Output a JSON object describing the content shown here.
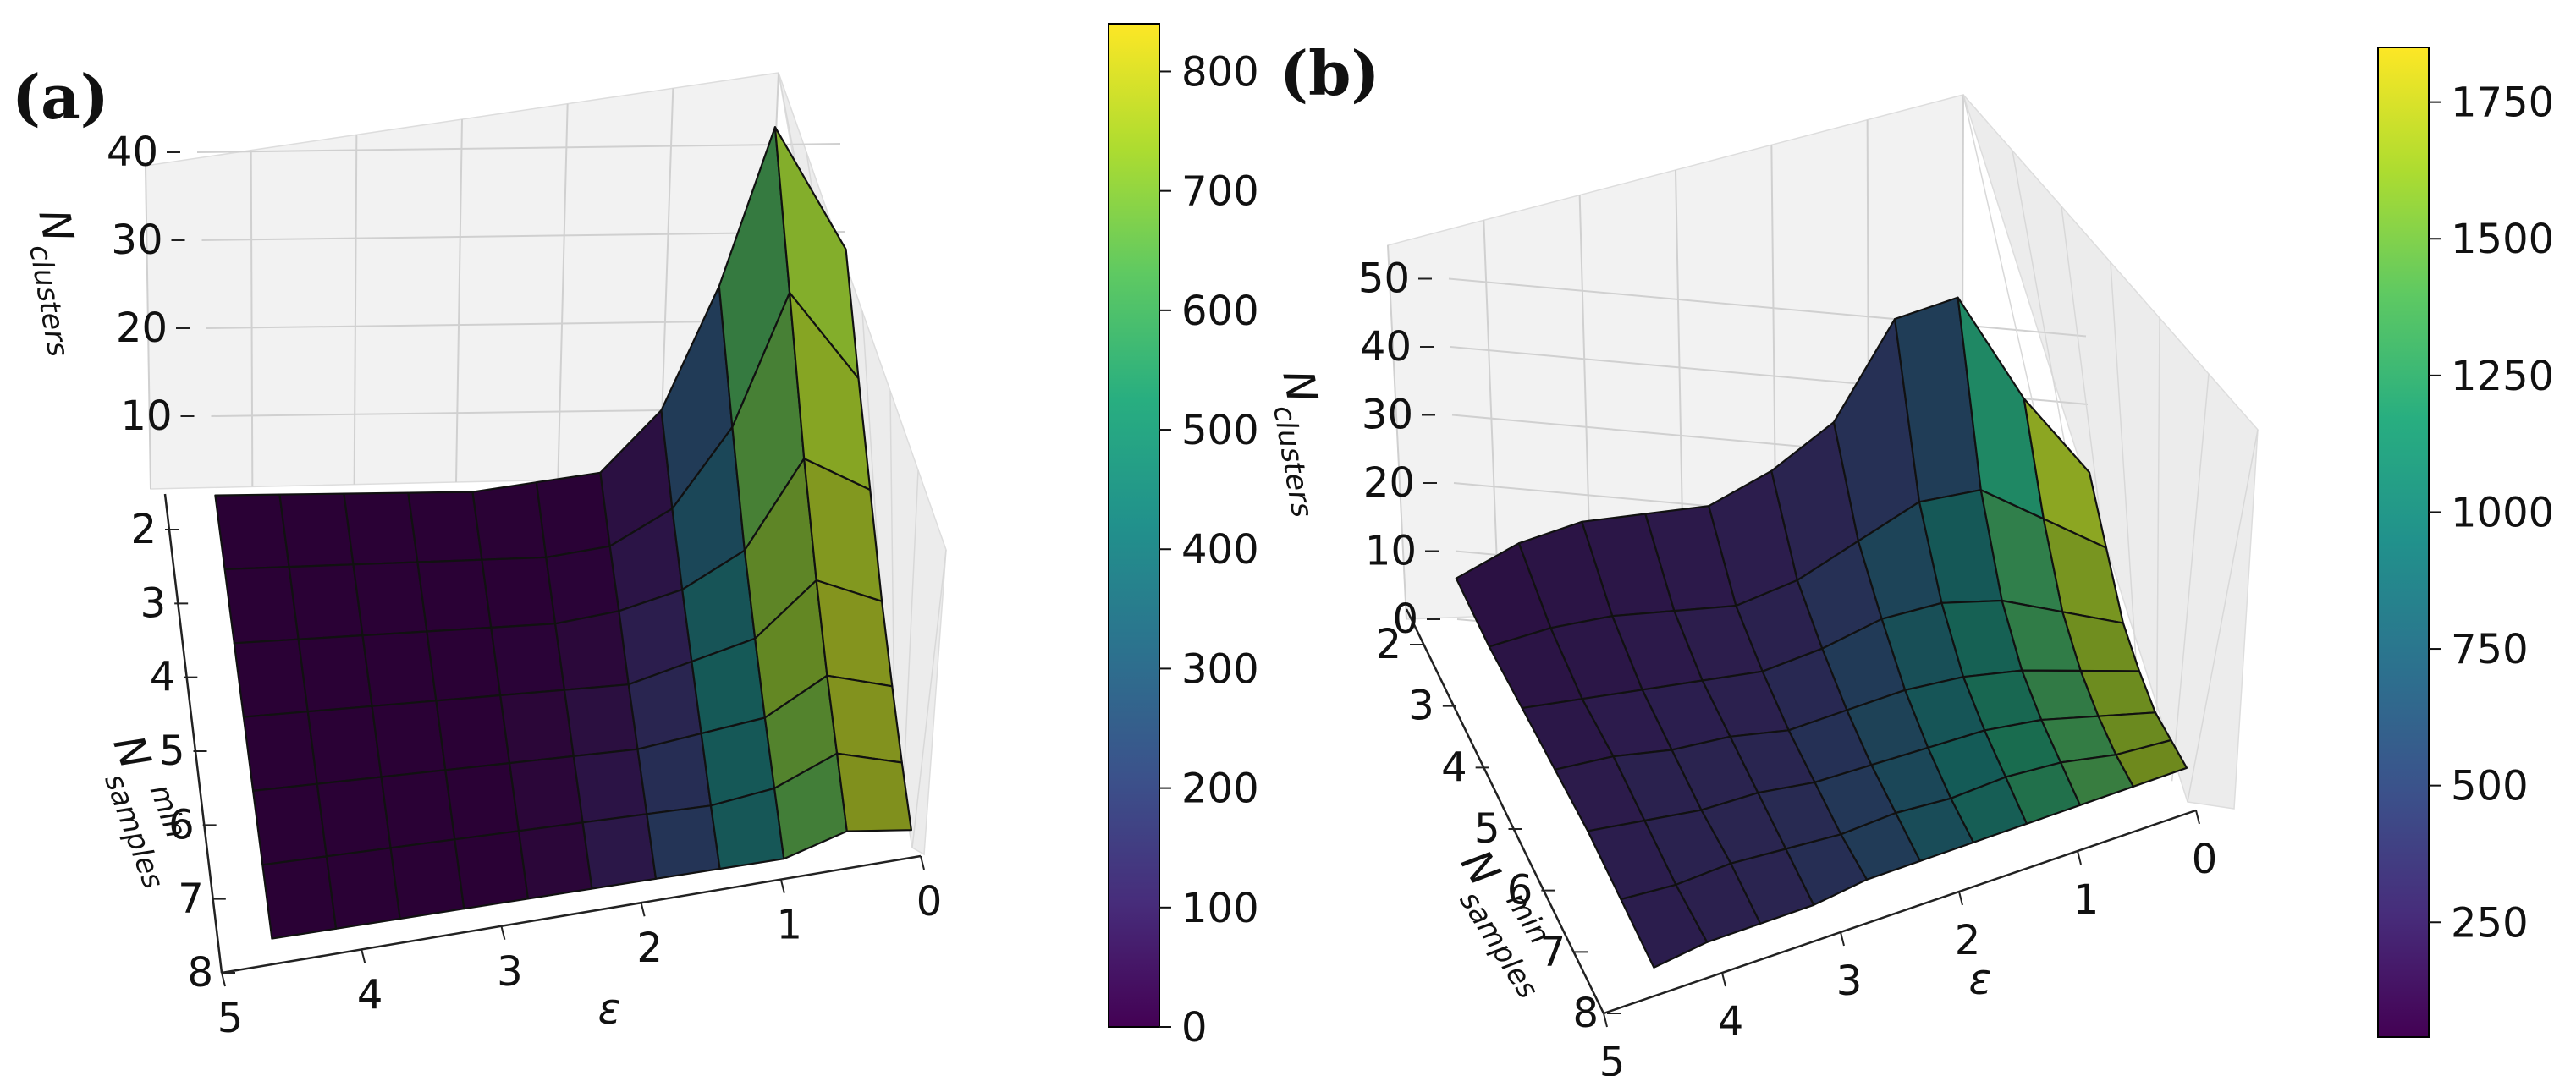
{
  "chart_data": [
    {
      "type": "surface3d",
      "panel_label": "(a)",
      "xlabel": "ε",
      "ylabel_main": "N",
      "ylabel_sup": "min",
      "ylabel_sub": "samples",
      "zlabel_main": "N",
      "zlabel_sub": "clusters",
      "x_ticks": [
        "5",
        "4",
        "3",
        "2",
        "1",
        "0"
      ],
      "y_ticks": [
        "2",
        "3",
        "4",
        "5",
        "6",
        "7",
        "8"
      ],
      "z_ticks": [
        "10",
        "20",
        "30",
        "40"
      ],
      "eps": [
        5.0,
        4.5,
        4.0,
        3.5,
        3.0,
        2.5,
        2.0,
        1.5,
        1.0,
        0.5,
        0.0
      ],
      "min_samples": [
        2,
        3,
        4,
        5,
        6,
        7,
        8
      ],
      "z_values": [
        [
          1,
          1,
          1,
          1,
          1,
          2,
          3,
          10,
          24,
          42,
          28
        ],
        [
          1,
          1,
          1,
          1,
          1,
          1,
          2,
          6,
          15,
          30,
          20
        ],
        [
          1,
          1,
          1,
          1,
          1,
          1,
          2,
          4,
          8,
          18,
          14
        ],
        [
          1,
          1,
          1,
          1,
          1,
          1,
          1,
          3,
          5,
          11,
          8
        ],
        [
          1,
          1,
          1,
          1,
          1,
          1,
          1,
          2,
          3,
          7,
          5
        ],
        [
          1,
          1,
          1,
          1,
          1,
          1,
          1,
          1,
          2,
          5,
          3
        ],
        [
          1,
          1,
          1,
          1,
          1,
          1,
          1,
          1,
          1,
          3,
          2
        ]
      ],
      "colorbar": {
        "colormap": "viridis",
        "min": 0,
        "max": 840,
        "ticks": [
          "0",
          "100",
          "200",
          "300",
          "400",
          "500",
          "600",
          "700",
          "800"
        ]
      },
      "color_values": [
        [
          3,
          3,
          3,
          3,
          3,
          5,
          10,
          90,
          380,
          820,
          600
        ],
        [
          3,
          3,
          3,
          3,
          3,
          4,
          12,
          120,
          420,
          830,
          640
        ],
        [
          3,
          3,
          3,
          3,
          3,
          4,
          18,
          160,
          560,
          820,
          680
        ],
        [
          3,
          3,
          3,
          3,
          3,
          30,
          60,
          200,
          620,
          830,
          700
        ],
        [
          3,
          3,
          3,
          3,
          3,
          40,
          90,
          240,
          600,
          820,
          720
        ],
        [
          3,
          3,
          3,
          3,
          3,
          40,
          120,
          280,
          520,
          790,
          740
        ],
        [
          3,
          3,
          3,
          3,
          3,
          40,
          140,
          320,
          500,
          780,
          760
        ]
      ]
    },
    {
      "type": "surface3d",
      "panel_label": "(b)",
      "xlabel": "ε",
      "ylabel_main": "N",
      "ylabel_sup": "min",
      "ylabel_sub": "samples",
      "zlabel_main": "N",
      "zlabel_sub": "clusters",
      "x_ticks": [
        "5",
        "4",
        "3",
        "2",
        "1",
        "0"
      ],
      "y_ticks": [
        "2",
        "3",
        "4",
        "5",
        "6",
        "7",
        "8"
      ],
      "z_ticks": [
        "0",
        "10",
        "20",
        "30",
        "40",
        "50"
      ],
      "eps": [
        5.0,
        4.5,
        4.0,
        3.5,
        3.0,
        2.5,
        2.0,
        1.5,
        1.0,
        0.5,
        0.0
      ],
      "min_samples": [
        2,
        3,
        4,
        5,
        6,
        7,
        8
      ],
      "z_values": [
        [
          6,
          12,
          16,
          18,
          20,
          26,
          34,
          50,
          54,
          40,
          30
        ],
        [
          5,
          8,
          10,
          11,
          12,
          16,
          22,
          28,
          30,
          26,
          22
        ],
        [
          5,
          6,
          7,
          8,
          9,
          12,
          16,
          18,
          18,
          16,
          14
        ],
        [
          5,
          6,
          6,
          7,
          7,
          9,
          11,
          12,
          12,
          11,
          10
        ],
        [
          5,
          5,
          5,
          6,
          6,
          7,
          8,
          9,
          9,
          8,
          7
        ],
        [
          4,
          4,
          5,
          5,
          5,
          6,
          6,
          7,
          7,
          6,
          6
        ],
        [
          3,
          4,
          4,
          4,
          5,
          5,
          5,
          5,
          5,
          5,
          5
        ]
      ],
      "colorbar": {
        "colormap": "viridis",
        "min": 40,
        "max": 1850,
        "ticks": [
          "250",
          "500",
          "750",
          "1000",
          "1250",
          "1500",
          "1750"
        ]
      },
      "color_values": [
        [
          160,
          180,
          200,
          220,
          260,
          280,
          300,
          340,
          380,
          1700,
          1650
        ],
        [
          180,
          200,
          220,
          240,
          260,
          300,
          500,
          700,
          1000,
          1600,
          1700
        ],
        [
          200,
          220,
          250,
          280,
          300,
          400,
          650,
          900,
          1100,
          1500,
          1750
        ],
        [
          230,
          260,
          320,
          300,
          360,
          500,
          750,
          950,
          1200,
          1450,
          1800
        ],
        [
          240,
          300,
          380,
          340,
          420,
          600,
          800,
          1050,
          1250,
          1400,
          1820
        ],
        [
          250,
          320,
          300,
          380,
          480,
          650,
          850,
          1100,
          1300,
          1400,
          1840
        ],
        [
          260,
          280,
          300,
          400,
          520,
          700,
          900,
          1150,
          1350,
          1450,
          1850
        ]
      ]
    }
  ]
}
